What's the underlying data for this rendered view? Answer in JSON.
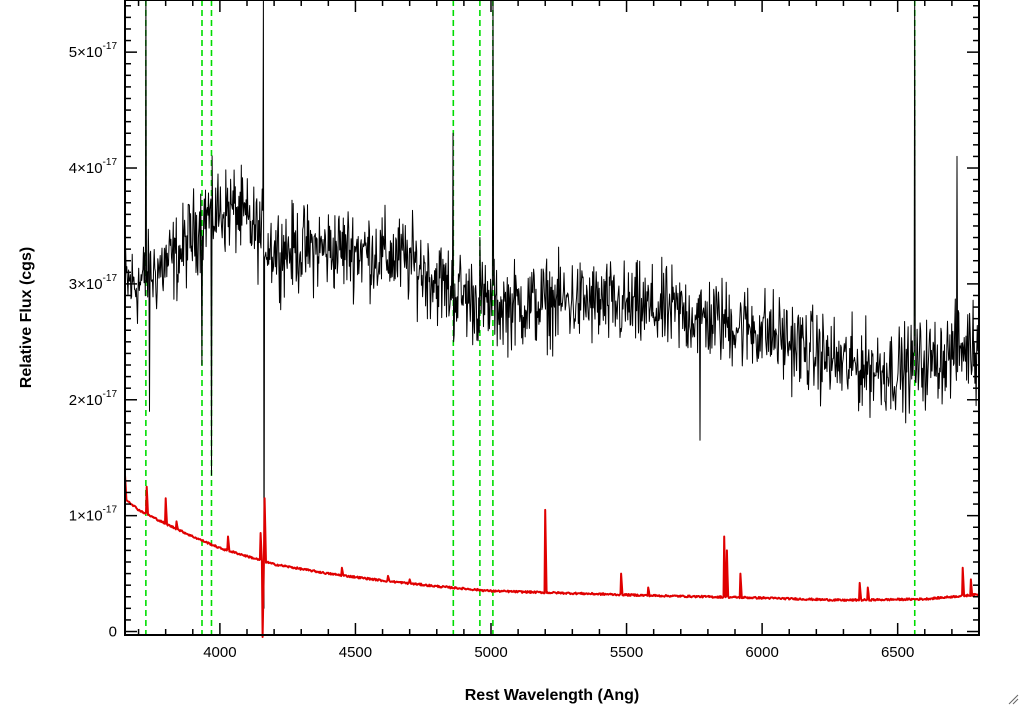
{
  "chart_data": {
    "type": "line",
    "xlabel": "Rest Wavelength (Ang)",
    "ylabel": "Relative Flux (cgs)",
    "xlim": [
      3650,
      6800
    ],
    "ylim": [
      -3e-19,
      5.45e-17
    ],
    "x_ticks": [
      4000,
      4500,
      5000,
      5500,
      6000,
      6500
    ],
    "x_tick_labels": [
      "4000",
      "4500",
      "5000",
      "5500",
      "6000",
      "6500"
    ],
    "y_ticks": [
      {
        "value": 0,
        "mantissa": "0",
        "exponent": ""
      },
      {
        "value": 1e-17,
        "mantissa": "1×10",
        "exponent": "-17"
      },
      {
        "value": 2e-17,
        "mantissa": "2×10",
        "exponent": "-17"
      },
      {
        "value": 3e-17,
        "mantissa": "3×10",
        "exponent": "-17"
      },
      {
        "value": 4e-17,
        "mantissa": "4×10",
        "exponent": "-17"
      },
      {
        "value": 5e-17,
        "mantissa": "5×10",
        "exponent": "-17"
      }
    ],
    "vertical_reference_lines": [
      3727,
      3934,
      3969,
      4861,
      4959,
      5007,
      6563
    ],
    "series": [
      {
        "color": "#000000",
        "style": "noisy",
        "anchors": [
          [
            3650,
            3e-17
          ],
          [
            3700,
            3e-17
          ],
          [
            3850,
            3.25e-17
          ],
          [
            3950,
            3.6e-17
          ],
          [
            4050,
            3.65e-17
          ],
          [
            4200,
            3.3e-17
          ],
          [
            4500,
            3.3e-17
          ],
          [
            4700,
            3.2e-17
          ],
          [
            4850,
            2.95e-17
          ],
          [
            5000,
            2.8e-17
          ],
          [
            5300,
            2.85e-17
          ],
          [
            5700,
            2.75e-17
          ],
          [
            6000,
            2.6e-17
          ],
          [
            6300,
            2.3e-17
          ],
          [
            6500,
            2.25e-17
          ],
          [
            6650,
            2.35e-17
          ],
          [
            6800,
            2.5e-17
          ]
        ],
        "noise": 3.2e-18,
        "features": [
          [
            3727,
            7e-17
          ],
          [
            3740,
            1.9e-17
          ],
          [
            3934,
            2.3e-17
          ],
          [
            3969,
            1.35e-17
          ],
          [
            4160,
            6e-17
          ],
          [
            4162,
            2e-18
          ],
          [
            4861,
            4.3e-17
          ],
          [
            4863,
            2.5e-17
          ],
          [
            4959,
            3.4e-17
          ],
          [
            5007,
            5.5e-17
          ],
          [
            5770,
            1.65e-17
          ],
          [
            6563,
            7e-17
          ],
          [
            6720,
            4.1e-17
          ],
          [
            6790,
            1.95e-17
          ]
        ]
      },
      {
        "color": "#e00000",
        "style": "smooth",
        "anchors": [
          [
            3650,
            1.15e-17
          ],
          [
            3700,
            1.05e-17
          ],
          [
            3800,
            9.3e-18
          ],
          [
            3900,
            8.2e-18
          ],
          [
            4000,
            7.2e-18
          ],
          [
            4100,
            6.5e-18
          ],
          [
            4200,
            5.8e-18
          ],
          [
            4400,
            5e-18
          ],
          [
            4600,
            4.4e-18
          ],
          [
            4800,
            3.9e-18
          ],
          [
            5000,
            3.5e-18
          ],
          [
            5300,
            3.3e-18
          ],
          [
            5600,
            3.1e-18
          ],
          [
            6000,
            2.9e-18
          ],
          [
            6300,
            2.7e-18
          ],
          [
            6600,
            2.8e-18
          ],
          [
            6800,
            3.2e-18
          ]
        ],
        "noise": 8e-20,
        "features": [
          [
            3650,
            1.35e-17
          ],
          [
            3730,
            1.25e-17
          ],
          [
            3800,
            1.15e-17
          ],
          [
            3840,
            9.5e-18
          ],
          [
            4030,
            8.2e-18
          ],
          [
            4150,
            8.5e-18
          ],
          [
            4158,
            -5e-19
          ],
          [
            4165,
            1.15e-17
          ],
          [
            4450,
            5.5e-18
          ],
          [
            4620,
            4.8e-18
          ],
          [
            4700,
            4.5e-18
          ],
          [
            5200,
            1.05e-17
          ],
          [
            5480,
            5e-18
          ],
          [
            5580,
            3.8e-18
          ],
          [
            5860,
            8.2e-18
          ],
          [
            5870,
            7e-18
          ],
          [
            5920,
            5e-18
          ],
          [
            6360,
            4.2e-18
          ],
          [
            6390,
            3.8e-18
          ],
          [
            6740,
            5.5e-18
          ],
          [
            6770,
            4.5e-18
          ]
        ]
      }
    ]
  }
}
